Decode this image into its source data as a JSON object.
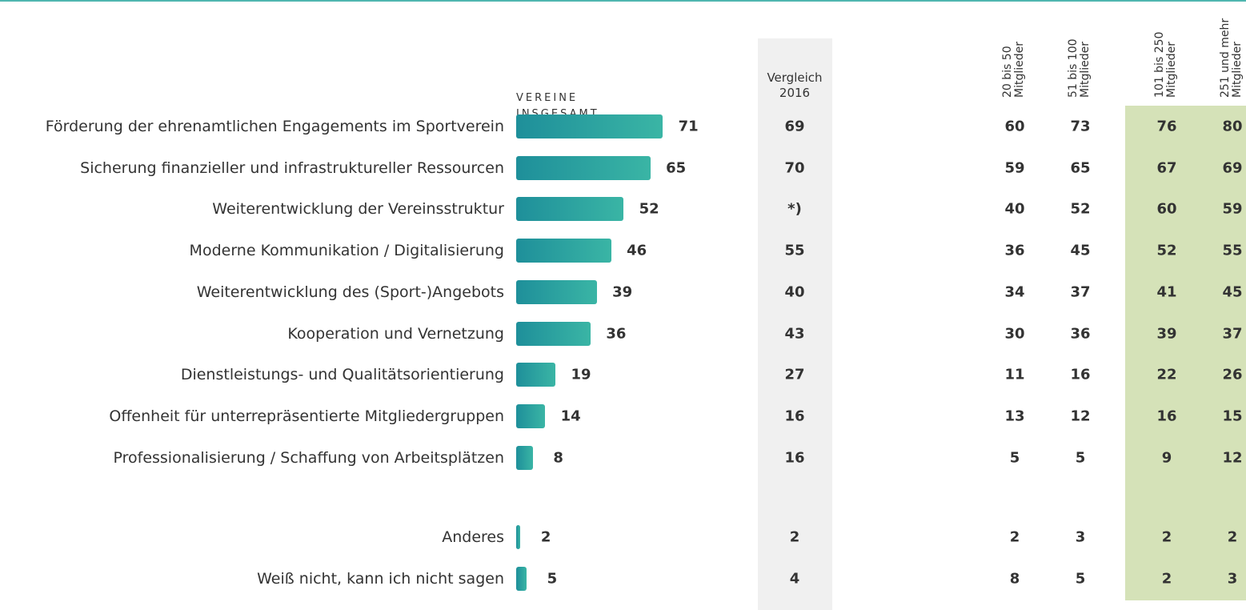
{
  "chart_data": {
    "type": "bar",
    "orientation": "horizontal",
    "header": "VEREINE INSGESAMT",
    "categories": [
      "Förderung der ehrenamtlichen Engagements im Sportverein",
      "Sicherung finanzieller und infrastruktureller Ressourcen",
      "Weiterentwicklung der Vereinsstruktur",
      "Moderne Kommunikation / Digitalisierung",
      "Weiterentwicklung des (Sport-)Angebots",
      "Kooperation und Vernetzung",
      "Dienstleistungs- und Qualitätsorientierung",
      "Offenheit für unterrepräsentierte Mitgliedergruppen",
      "Professionalisierung / Schaffung von Arbeitsplätzen",
      "Anderes",
      "Weiß nicht, kann ich nicht sagen"
    ],
    "values": [
      71,
      65,
      52,
      46,
      39,
      36,
      19,
      14,
      8,
      2,
      5
    ],
    "color": [
      "#1e8f9a",
      "#3ab5a5"
    ],
    "xlim": [
      0,
      100
    ],
    "comparison": {
      "header": "Vergleich 2016",
      "values": [
        69,
        70,
        "*)",
        55,
        40,
        43,
        27,
        16,
        16,
        2,
        4
      ]
    },
    "series": [
      {
        "name": "20 bis 50 Mitglieder",
        "values": [
          60,
          59,
          40,
          36,
          34,
          30,
          11,
          13,
          5,
          2,
          8
        ]
      },
      {
        "name": "51 bis 100 Mitglieder",
        "values": [
          73,
          65,
          52,
          45,
          37,
          36,
          16,
          12,
          5,
          3,
          5
        ]
      },
      {
        "name": "101 bis 250 Mitglieder",
        "values": [
          76,
          67,
          60,
          52,
          41,
          39,
          22,
          16,
          9,
          2,
          2
        ]
      },
      {
        "name": "251 und mehr Mitglieder",
        "values": [
          80,
          69,
          59,
          55,
          45,
          37,
          26,
          15,
          12,
          2,
          3
        ]
      }
    ]
  }
}
